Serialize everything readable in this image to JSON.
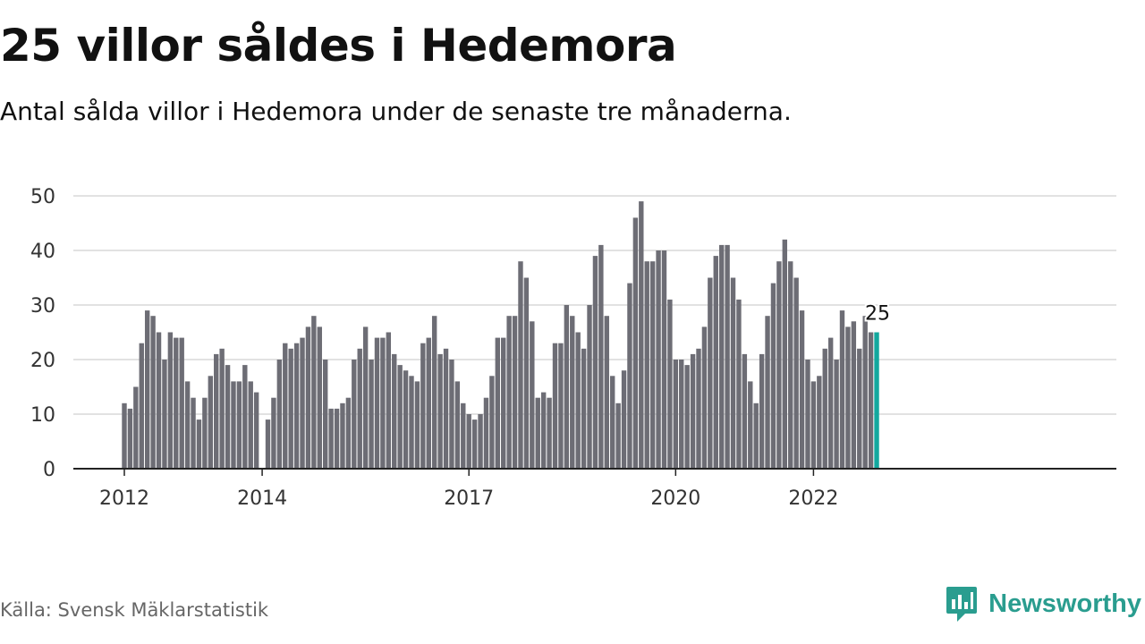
{
  "header": {
    "title": "25 villor såldes i Hedemora",
    "subtitle": "Antal sålda villor i Hedemora under de senaste tre månaderna."
  },
  "footer": {
    "source": "Källa: Svensk Mäklarstatistik",
    "brand": "Newsworthy"
  },
  "colors": {
    "bar": "#6d6d75",
    "highlight": "#13a89e",
    "grid": "#d8d8d8",
    "axis": "#222222",
    "brand": "#2a9d8f"
  },
  "chart_data": {
    "type": "bar",
    "title": "25 villor såldes i Hedemora",
    "subtitle": "Antal sålda villor i Hedemora under de senaste tre månaderna.",
    "xlabel": "",
    "ylabel": "",
    "ylim": [
      0,
      50
    ],
    "yticks": [
      0,
      10,
      20,
      30,
      40,
      50
    ],
    "xticks": [
      {
        "label": "2012",
        "index": 0
      },
      {
        "label": "2014",
        "index": 24
      },
      {
        "label": "2017",
        "index": 60
      },
      {
        "label": "2020",
        "index": 96
      },
      {
        "label": "2022",
        "index": 120
      }
    ],
    "grid": true,
    "highlight_index": 131,
    "annotation": {
      "text": "25",
      "index": 131
    },
    "values": [
      12,
      11,
      15,
      23,
      29,
      28,
      25,
      20,
      25,
      24,
      24,
      16,
      13,
      9,
      13,
      17,
      21,
      22,
      19,
      16,
      16,
      19,
      16,
      14,
      0,
      9,
      13,
      20,
      23,
      22,
      23,
      24,
      26,
      28,
      26,
      20,
      11,
      11,
      12,
      13,
      20,
      22,
      26,
      20,
      24,
      24,
      25,
      21,
      19,
      18,
      17,
      16,
      23,
      24,
      28,
      21,
      22,
      20,
      16,
      12,
      10,
      9,
      10,
      13,
      17,
      24,
      24,
      28,
      28,
      38,
      35,
      27,
      13,
      14,
      13,
      23,
      23,
      30,
      28,
      25,
      22,
      30,
      39,
      41,
      28,
      17,
      12,
      18,
      34,
      46,
      49,
      38,
      38,
      40,
      40,
      31,
      20,
      20,
      19,
      21,
      22,
      26,
      35,
      39,
      41,
      41,
      35,
      31,
      21,
      16,
      12,
      21,
      28,
      34,
      38,
      42,
      38,
      35,
      29,
      20,
      16,
      17,
      22,
      24,
      20,
      29,
      26,
      27,
      22,
      28,
      25,
      25
    ]
  }
}
